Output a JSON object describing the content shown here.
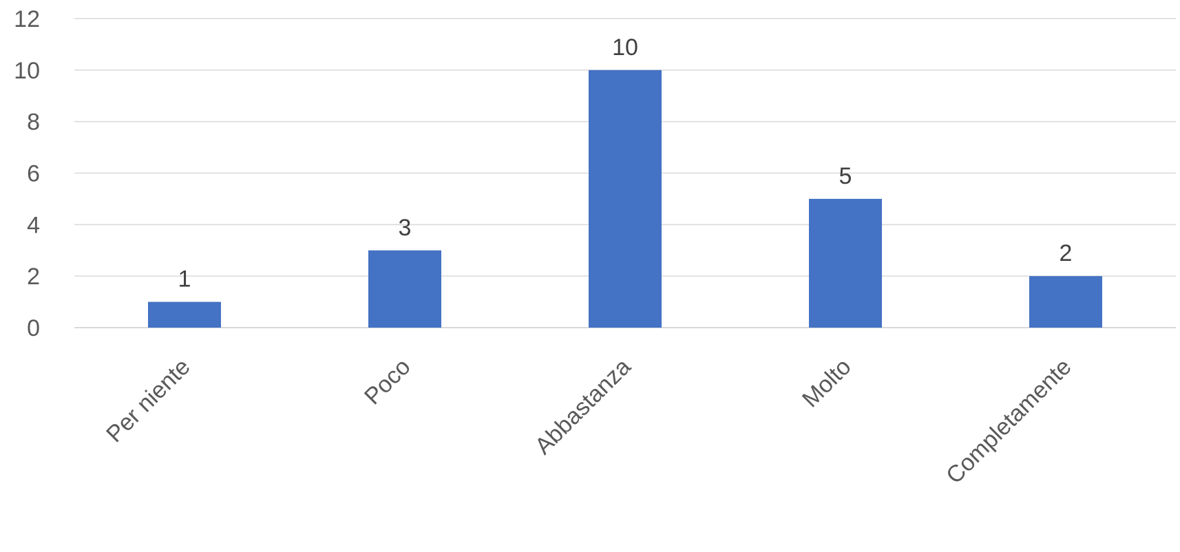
{
  "chart_data": {
    "type": "bar",
    "title": "",
    "xlabel": "",
    "ylabel": "",
    "categories": [
      "Per niente",
      "Poco",
      "Abbastanza",
      "Molto",
      "Completamente"
    ],
    "values": [
      1,
      3,
      10,
      5,
      2
    ],
    "ylim": [
      0,
      12
    ],
    "yticks": [
      0,
      2,
      4,
      6,
      8,
      10,
      12
    ],
    "grid": true,
    "legend": "none",
    "data_labels": true,
    "bar_color": "#4472c4"
  }
}
